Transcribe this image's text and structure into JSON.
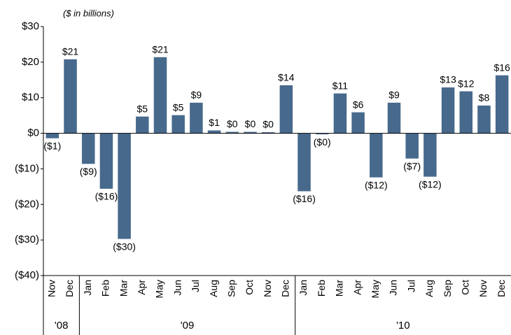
{
  "chart_data": {
    "type": "bar",
    "subtitle": "($ in billions)",
    "categories": [
      "Nov",
      "Dec",
      "Jan",
      "Feb",
      "Mar",
      "Apr",
      "May",
      "Jun",
      "Jul",
      "Aug",
      "Sep",
      "Oct",
      "Nov",
      "Dec",
      "Jan",
      "Feb",
      "Mar",
      "Apr",
      "May",
      "Jun",
      "Jul",
      "Aug",
      "Sep",
      "Oct",
      "Nov",
      "Dec"
    ],
    "values": [
      -1.4,
      20.8,
      -8.6,
      -15.6,
      -29.7,
      4.7,
      21.4,
      5.1,
      8.6,
      0.8,
      0.4,
      0.4,
      0.3,
      13.5,
      -16.3,
      -0.3,
      11.2,
      5.9,
      -12.4,
      8.6,
      -7.1,
      -12.2,
      12.9,
      11.8,
      7.8,
      16.3
    ],
    "value_labels": [
      "($1)",
      "$21",
      "($9)",
      "($16)",
      "($30)",
      "$5",
      "$21",
      "$5",
      "$9",
      "$1",
      "$0",
      "$0",
      "$0",
      "$14",
      "($16)",
      "($0)",
      "$11",
      "$6",
      "($12)",
      "$9",
      "($7)",
      "($12)",
      "$13",
      "$12",
      "$8",
      "$16"
    ],
    "groups": [
      {
        "label": "'08",
        "span": 2
      },
      {
        "label": "'09",
        "span": 12
      },
      {
        "label": "'10",
        "span": 12
      }
    ],
    "color": "#47698c",
    "ylim": [
      -40,
      30
    ],
    "yticks": [
      {
        "value": 30,
        "label": "$30"
      },
      {
        "value": 20,
        "label": "$20"
      },
      {
        "value": 10,
        "label": "$10"
      },
      {
        "value": 0,
        "label": "$0"
      },
      {
        "value": -10,
        "label": "($10)"
      },
      {
        "value": -20,
        "label": "($20)"
      },
      {
        "value": -30,
        "label": "($30)"
      },
      {
        "value": -40,
        "label": "($40)"
      }
    ]
  }
}
